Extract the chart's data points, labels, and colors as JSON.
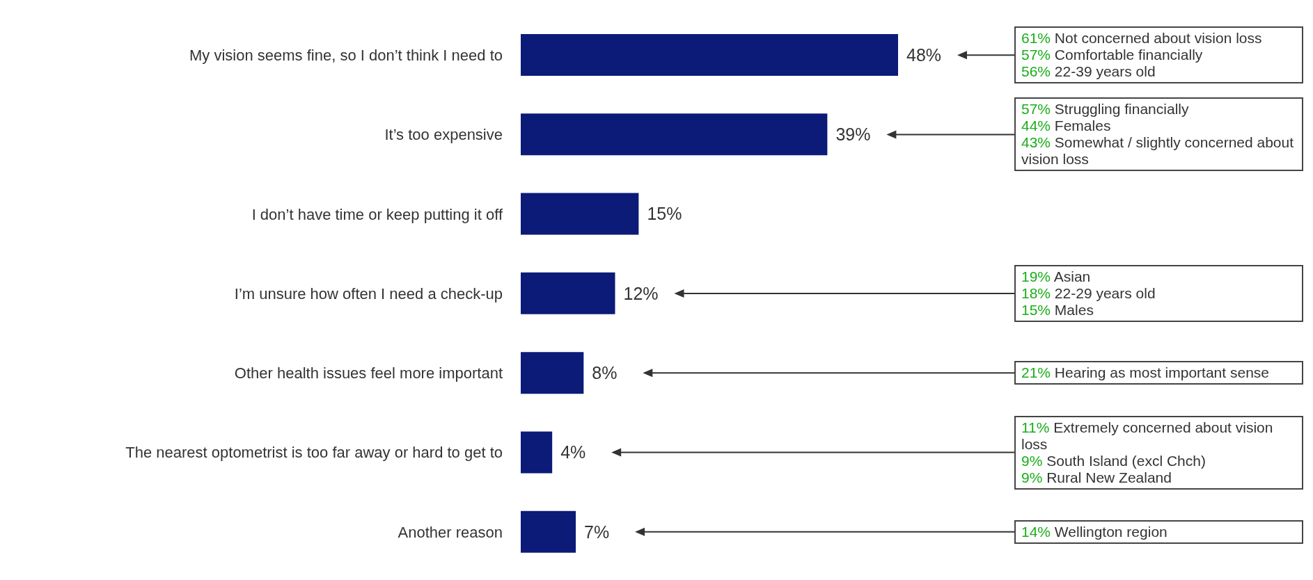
{
  "chart_data": {
    "type": "bar",
    "orientation": "horizontal",
    "categories": [
      "My vision seems fine, so I don’t think I need to",
      "It’s too expensive",
      "I don’t have time or keep putting it off",
      "I’m unsure how often I need a check-up",
      "Other health issues feel more important",
      "The nearest optometrist is too far away or hard to get to",
      "Another reason"
    ],
    "values": [
      48,
      39,
      15,
      12,
      8,
      4,
      7
    ],
    "value_labels": [
      "48%",
      "39%",
      "15%",
      "12%",
      "8%",
      "4%",
      "7%"
    ],
    "color": "#0c1a78",
    "grid": false,
    "legend": false,
    "annotations": [
      "61% Not concerned about vision loss\n57% Comfortable financially\n56% 22-39 years old",
      "57% Struggling financially\n44% Females\n43% Somewhat / slightly concerned about vision loss",
      "19% Asian\n18% 22-29 years old\n15% Males",
      "21% Hearing as most important sense",
      "11% Extremely concerned about vision loss\n9% South Island (excl Chch)\n9% Rural New Zealand",
      "14% Wellington region"
    ]
  }
}
